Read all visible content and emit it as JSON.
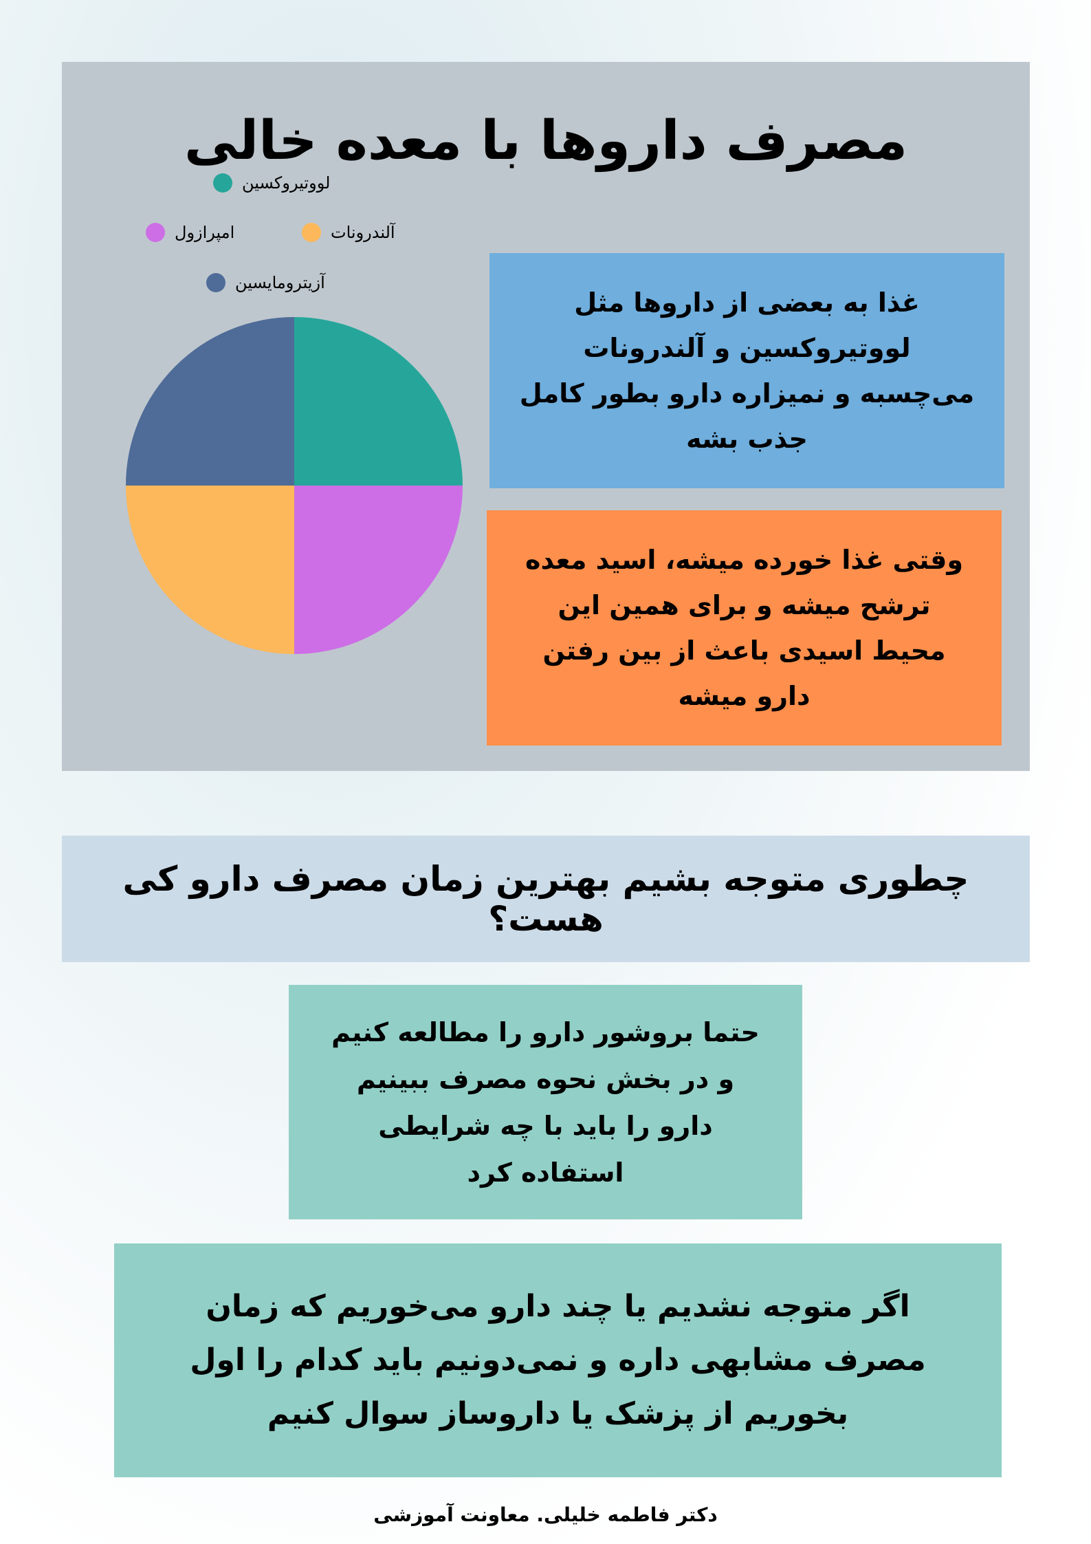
{
  "title": "مصرف داروها با معده خالی",
  "chart_data": {
    "type": "pie",
    "legend_position": "top",
    "categories": [
      "لووتیروکسین",
      "امپرازول",
      "آلندرونات",
      "آزیترومایسین"
    ],
    "values": [
      25,
      25,
      25,
      25
    ],
    "colors": [
      "#26a69a",
      "#cd6ee6",
      "#fcb85a",
      "#4f6c98"
    ]
  },
  "info_boxes": [
    {
      "text": "غذا به بعضی از داروها مثل\nلووتیروکسین و  آلندرونات\nمی‌چسبه و نمیزاره دارو بطور کامل\nجذب بشه",
      "color": "#6faedd"
    },
    {
      "text": "وقتی غذا خورده میشه، اسید معده\nترشح میشه و برای همین این\nمحیط اسیدی باعث از بین رفتن\nدارو میشه",
      "color": "#ff8f4c"
    }
  ],
  "question": "چطوری متوجه بشیم بهترین زمان مصرف دارو کی هست؟",
  "tips": [
    "حتما بروشور دارو را مطالعه کنیم\nو در بخش نحوه مصرف ببینیم\nدارو را باید با چه شرایطی\nاستفاده کرد",
    "اگر متوجه نشدیم یا چند دارو می‌خوریم که زمان\nمصرف مشابهی داره و نمی‌دونیم باید کدام را اول\nبخوریم از پزشک یا داروساز سوال کنیم"
  ],
  "footer": "دکتر فاطمه خلیلی. معاونت آموزشی"
}
